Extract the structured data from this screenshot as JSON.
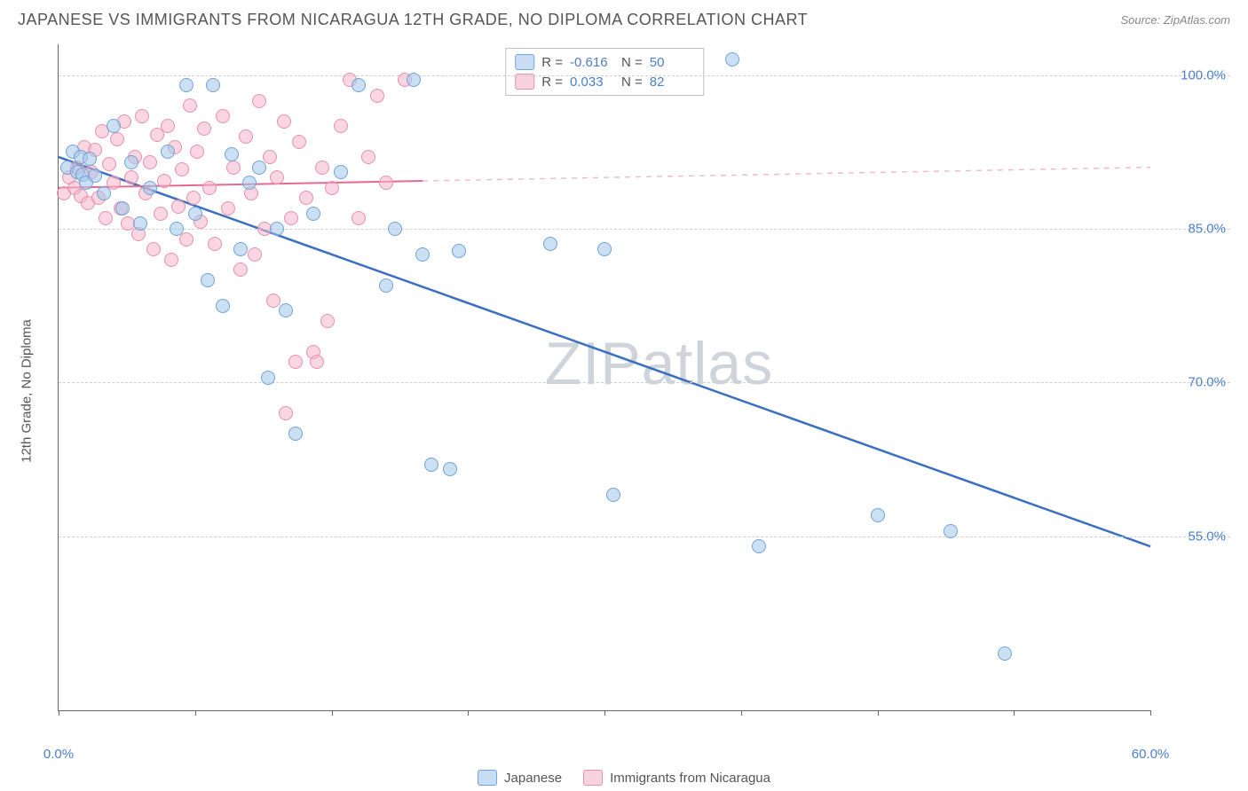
{
  "title": "JAPANESE VS IMMIGRANTS FROM NICARAGUA 12TH GRADE, NO DIPLOMA CORRELATION CHART",
  "source": "Source: ZipAtlas.com",
  "watermark": "ZIPatlas",
  "chart": {
    "type": "scatter",
    "ylabel": "12th Grade, No Diploma",
    "xlim": [
      0,
      60
    ],
    "ylim": [
      38,
      103
    ],
    "x_ticks": [
      0,
      7.5,
      15,
      22.5,
      30,
      37.5,
      45,
      52.5,
      60
    ],
    "x_tick_labels": {
      "0": "0.0%",
      "60": "60.0%"
    },
    "y_ticks": [
      55,
      70,
      85,
      100
    ],
    "y_tick_labels": [
      "55.0%",
      "70.0%",
      "85.0%",
      "100.0%"
    ],
    "grid_color": "#d0d0d0",
    "background_color": "#ffffff",
    "axis_color": "#666666",
    "tick_label_color": "#4a7fc9",
    "marker_size": 16,
    "series": [
      {
        "name": "Japanese",
        "color_fill": "#a3c6eb",
        "color_stroke": "#6fa3d9",
        "marker": "circle",
        "R": "-0.616",
        "N": "50",
        "points": [
          [
            0.5,
            91
          ],
          [
            0.8,
            92.5
          ],
          [
            1,
            90.5
          ],
          [
            1.2,
            92
          ],
          [
            1.3,
            90.3
          ],
          [
            1.5,
            89.5
          ],
          [
            1.7,
            91.8
          ],
          [
            2,
            90.2
          ],
          [
            2.5,
            88.5
          ],
          [
            3,
            95
          ],
          [
            3.5,
            87
          ],
          [
            4,
            91.5
          ],
          [
            4.5,
            85.5
          ],
          [
            5,
            89
          ],
          [
            6,
            92.5
          ],
          [
            6.5,
            85
          ],
          [
            7,
            99
          ],
          [
            7.5,
            86.5
          ],
          [
            8.5,
            99
          ],
          [
            8.2,
            80
          ],
          [
            9,
            77.5
          ],
          [
            9.5,
            92.3
          ],
          [
            10,
            83
          ],
          [
            10.5,
            89.5
          ],
          [
            11,
            91
          ],
          [
            11.5,
            70.5
          ],
          [
            12,
            85
          ],
          [
            12.5,
            77
          ],
          [
            13,
            65
          ],
          [
            14,
            86.5
          ],
          [
            16.5,
            99
          ],
          [
            15.5,
            90.5
          ],
          [
            18,
            79.5
          ],
          [
            18.5,
            85
          ],
          [
            19.5,
            99.5
          ],
          [
            20,
            82.5
          ],
          [
            20.5,
            62
          ],
          [
            21.5,
            61.5
          ],
          [
            22,
            82.8
          ],
          [
            27,
            83.5
          ],
          [
            30,
            83
          ],
          [
            30.5,
            59
          ],
          [
            37,
            101.5
          ],
          [
            38.5,
            54
          ],
          [
            45,
            57
          ],
          [
            49,
            55.5
          ],
          [
            52,
            43.5
          ]
        ],
        "trend": {
          "x1": 0,
          "y1": 92,
          "x2": 60,
          "y2": 54,
          "solid_until_x": 60,
          "line_width": 2.5,
          "line_color": "#3b6fc2"
        }
      },
      {
        "name": "Immigrants from Nicaragua",
        "color_fill": "#f4b4c8",
        "color_stroke": "#e890aa",
        "marker": "circle",
        "R": "0.033",
        "N": "82",
        "points": [
          [
            0.3,
            88.5
          ],
          [
            0.6,
            90
          ],
          [
            0.9,
            89
          ],
          [
            1,
            91
          ],
          [
            1.2,
            88.2
          ],
          [
            1.4,
            93
          ],
          [
            1.6,
            87.5
          ],
          [
            1.8,
            90.5
          ],
          [
            2,
            92.7
          ],
          [
            2.2,
            88
          ],
          [
            2.4,
            94.5
          ],
          [
            2.6,
            86
          ],
          [
            2.8,
            91.3
          ],
          [
            3,
            89.5
          ],
          [
            3.2,
            93.7
          ],
          [
            3.4,
            87
          ],
          [
            3.6,
            95.5
          ],
          [
            3.8,
            85.5
          ],
          [
            4,
            90
          ],
          [
            4.2,
            92
          ],
          [
            4.4,
            84.5
          ],
          [
            4.6,
            96
          ],
          [
            4.8,
            88.5
          ],
          [
            5,
            91.5
          ],
          [
            5.2,
            83
          ],
          [
            5.4,
            94.2
          ],
          [
            5.6,
            86.5
          ],
          [
            5.8,
            89.7
          ],
          [
            6,
            95
          ],
          [
            6.2,
            82
          ],
          [
            6.4,
            93
          ],
          [
            6.6,
            87.2
          ],
          [
            6.8,
            90.8
          ],
          [
            7,
            84
          ],
          [
            7.2,
            97
          ],
          [
            7.4,
            88
          ],
          [
            7.6,
            92.5
          ],
          [
            7.8,
            85.7
          ],
          [
            8,
            94.8
          ],
          [
            8.3,
            89
          ],
          [
            8.6,
            83.5
          ],
          [
            9,
            96
          ],
          [
            9.3,
            87
          ],
          [
            9.6,
            91
          ],
          [
            10,
            81
          ],
          [
            10.3,
            94
          ],
          [
            10.6,
            88.5
          ],
          [
            11,
            97.5
          ],
          [
            11.3,
            85
          ],
          [
            11.6,
            92
          ],
          [
            12,
            90
          ],
          [
            12.4,
            95.5
          ],
          [
            12.8,
            86
          ],
          [
            13.2,
            93.5
          ],
          [
            13.6,
            88
          ],
          [
            14,
            73
          ],
          [
            14.5,
            91
          ],
          [
            15,
            89
          ],
          [
            15.5,
            95
          ],
          [
            16,
            99.5
          ],
          [
            16.5,
            86
          ],
          [
            17,
            92
          ],
          [
            17.5,
            98
          ],
          [
            18,
            89.5
          ],
          [
            12.5,
            67
          ],
          [
            13,
            72
          ],
          [
            14.2,
            72
          ],
          [
            14.8,
            76
          ],
          [
            19,
            99.5
          ],
          [
            10.8,
            82.5
          ],
          [
            11.8,
            78
          ]
        ],
        "trend": {
          "x1": 0,
          "y1": 89,
          "x2": 60,
          "y2": 91,
          "solid_until_x": 20,
          "line_width": 2,
          "line_color": "#e46a94",
          "dash_color": "#f0b8c8"
        }
      }
    ]
  },
  "legend": {
    "series1": "Japanese",
    "series2": "Immigrants from Nicaragua"
  }
}
